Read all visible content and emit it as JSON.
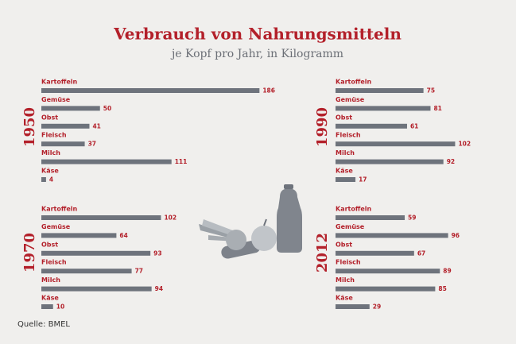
{
  "title": "Verbrauch von Nahrungsmitteln",
  "subtitle": "je Kopf pro Jahr, in Kilogramm",
  "source": "Quelle: BMEL",
  "chart_data": [
    {
      "type": "bar",
      "title": "1950",
      "color": "#6e737c",
      "categories": [
        "Kartoffeln",
        "Gemüse",
        "Obst",
        "Fleisch",
        "Milch",
        "Käse"
      ],
      "values": [
        186,
        50,
        41,
        37,
        111,
        4
      ]
    },
    {
      "type": "bar",
      "title": "1990",
      "color": "#6e737c",
      "categories": [
        "Kartoffeln",
        "Gemüse",
        "Obst",
        "Fleisch",
        "Milch",
        "Käse"
      ],
      "values": [
        75,
        81,
        61,
        102,
        92,
        17
      ]
    },
    {
      "type": "bar",
      "title": "1970",
      "color": "#6e737c",
      "categories": [
        "Kartoffeln",
        "Gemüse",
        "Obst",
        "Fleisch",
        "Milch",
        "Käse"
      ],
      "values": [
        102,
        64,
        93,
        77,
        94,
        10
      ]
    },
    {
      "type": "bar",
      "title": "2012",
      "color": "#6e737c",
      "categories": [
        "Kartoffeln",
        "Gemüse",
        "Obst",
        "Fleisch",
        "Milch",
        "Käse"
      ],
      "values": [
        59,
        96,
        67,
        89,
        85,
        29
      ]
    }
  ]
}
